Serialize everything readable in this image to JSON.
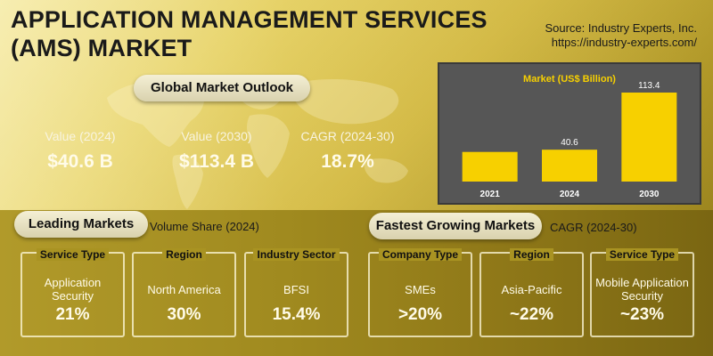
{
  "header": {
    "title_line1": "APPLICATION MANAGEMENT SERVICES",
    "title_line2": "(AMS) MARKET",
    "source_line1": "Source: Industry Experts, Inc.",
    "source_line2": "https://industry-experts.com/"
  },
  "outlook": {
    "heading": "Global Market Outlook",
    "kpis": [
      {
        "label": "Value (2024)",
        "value": "$40.6 B"
      },
      {
        "label": "Value (2030)",
        "value": "$113.4 B"
      },
      {
        "label": "CAGR (2024-30)",
        "value": "18.7%"
      }
    ]
  },
  "chart_data": {
    "type": "bar",
    "title": "Market (US$ Billion)",
    "categories": [
      "2021",
      "2024",
      "2030"
    ],
    "values": [
      null,
      40.6,
      113.4
    ],
    "value_labels": [
      "",
      "40.6",
      "113.4"
    ],
    "ylim": [
      0,
      113.4
    ],
    "colors": {
      "bar": "#f7d000",
      "panel": "#565656",
      "title": "#f7d000",
      "label": "#ffffff"
    }
  },
  "leading": {
    "heading": "Leading Markets",
    "note": "Volume Share (2024)",
    "cards": [
      {
        "head": "Service Type",
        "name": "Application Security",
        "value": "21%"
      },
      {
        "head": "Region",
        "name": "North America",
        "value": "30%"
      },
      {
        "head": "Industry Sector",
        "name": "BFSI",
        "value": "15.4%"
      }
    ]
  },
  "fastest": {
    "heading": "Fastest Growing Markets",
    "note": "CAGR (2024-30)",
    "cards": [
      {
        "head": "Company Type",
        "name": "SMEs",
        "value": ">20%"
      },
      {
        "head": "Region",
        "name": "Asia-Pacific",
        "value": "~22%"
      },
      {
        "head": "Service Type",
        "name": "Mobile Application Security",
        "value": "~23%"
      }
    ]
  }
}
